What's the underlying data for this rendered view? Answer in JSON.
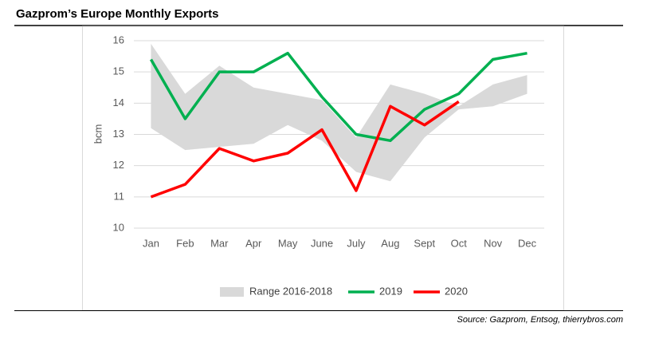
{
  "chart_data": {
    "type": "line",
    "title": "Gazprom’s Europe Monthly Exports",
    "y_label": "bcm",
    "source": "Source: Gazprom, Entsog, thierrybros.com",
    "categories": [
      "Jan",
      "Feb",
      "Mar",
      "Apr",
      "May",
      "June",
      "July",
      "Aug",
      "Sept",
      "Oct",
      "Nov",
      "Dec"
    ],
    "series": [
      {
        "name": "Range 2016-2018",
        "color": "#d9d9d9",
        "lower": [
          13.2,
          12.5,
          12.6,
          12.7,
          13.3,
          12.8,
          11.8,
          11.5,
          12.9,
          13.8,
          13.9,
          14.3
        ],
        "upper": [
          15.9,
          14.3,
          15.2,
          14.5,
          14.3,
          14.1,
          12.9,
          14.6,
          14.3,
          13.9,
          14.6,
          14.9
        ]
      },
      {
        "name": "2019",
        "color": "#00b050",
        "values": [
          15.4,
          13.5,
          15.0,
          15.0,
          15.6,
          14.2,
          13.0,
          12.8,
          13.8,
          14.3,
          15.4,
          15.6
        ]
      },
      {
        "name": "2020",
        "color": "#ff0000",
        "values": [
          11.0,
          11.4,
          12.55,
          12.15,
          12.4,
          13.15,
          11.2,
          13.9,
          13.3,
          14.05,
          null,
          null
        ]
      }
    ],
    "ylim": [
      10,
      16
    ],
    "yticks": [
      10,
      11,
      12,
      13,
      14,
      15,
      16
    ],
    "grid": true
  }
}
